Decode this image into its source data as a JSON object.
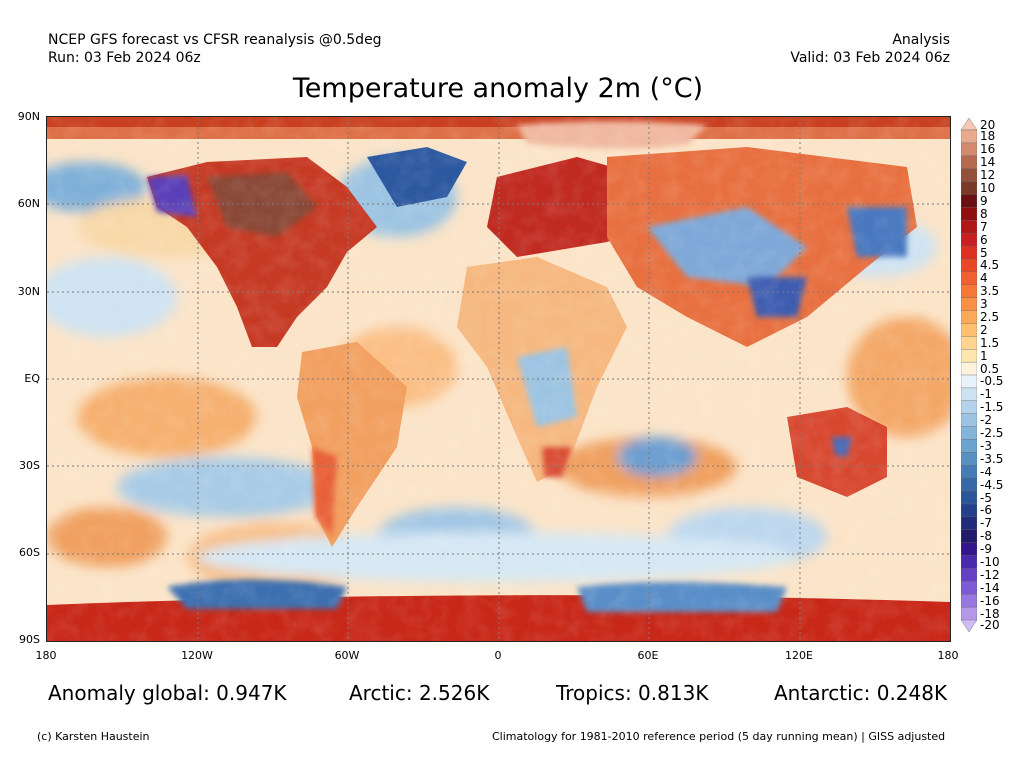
{
  "header": {
    "line1_left": "NCEP GFS forecast vs CFSR reanalysis @0.5deg",
    "line2_left": "Run: 03 Feb 2024 06z",
    "line1_right": "Analysis",
    "line2_right": "Valid: 03 Feb 2024 06z"
  },
  "title": "Temperature anomaly 2m (°C)",
  "axes": {
    "lat_labels": [
      "90N",
      "60N",
      "30N",
      "EQ",
      "30S",
      "60S",
      "90S"
    ],
    "lon_labels": [
      "180",
      "120W",
      "60W",
      "0",
      "60E",
      "120E",
      "180"
    ]
  },
  "colorbar": {
    "labels": [
      "20",
      "18",
      "16",
      "14",
      "12",
      "10",
      "9",
      "8",
      "7",
      "6",
      "5",
      "4.5",
      "4",
      "3.5",
      "3",
      "2.5",
      "2",
      "1.5",
      "1",
      "0.5",
      "-0.5",
      "-1",
      "-1.5",
      "-2",
      "-2.5",
      "-3",
      "-3.5",
      "-4",
      "-4.5",
      "-5",
      "-6",
      "-7",
      "-8",
      "-9",
      "-10",
      "-12",
      "-14",
      "-16",
      "-18",
      "-20"
    ],
    "colors": [
      "#f4c8b4",
      "#e8a98e",
      "#d48a6e",
      "#b56a50",
      "#94503a",
      "#7a3a28",
      "#6b1010",
      "#8f1010",
      "#b01818",
      "#c82020",
      "#dc3020",
      "#e84828",
      "#f06030",
      "#f47838",
      "#f89048",
      "#fbaa5c",
      "#fdc070",
      "#fed490",
      "#fee6b0",
      "#fdf3dc",
      "#e8f2fa",
      "#cde3f2",
      "#b4d3ea",
      "#9cc4e2",
      "#84b4d8",
      "#6ca2ce",
      "#5890c2",
      "#467cb6",
      "#3868a8",
      "#2c549a",
      "#24408a",
      "#202c7a",
      "#221a6a",
      "#32168a",
      "#4a2aaa",
      "#6440c2",
      "#7e5ad4",
      "#9878e0",
      "#b498ea",
      "#d0bcf4"
    ]
  },
  "stats": {
    "global": "Anomaly global: 0.947K",
    "arctic": "Arctic: 2.526K",
    "tropics": "Tropics: 0.813K",
    "antarctic": "Antarctic: 0.248K"
  },
  "footer": {
    "credit": "(c) Karsten Haustein",
    "note": "Climatology for 1981-2010 reference period (5 day running mean) | GISS adjusted"
  }
}
